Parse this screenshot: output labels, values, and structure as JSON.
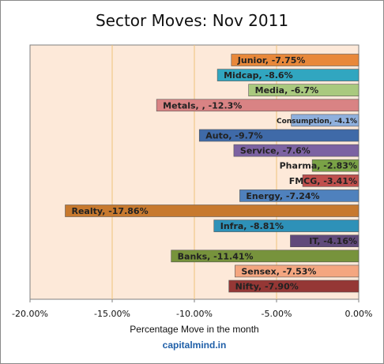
{
  "chart_data": {
    "type": "bar",
    "orientation": "horizontal",
    "title": "Sector Moves: Nov 2011",
    "xlabel": "Percentage Move in the month",
    "source": "capitalmind.in",
    "xlim": [
      -20,
      0
    ],
    "xticks": [
      "-20.00%",
      "-15.00%",
      "-10.00%",
      "-5.00%",
      "0.00%"
    ],
    "grid": "vertical",
    "bars": [
      {
        "label": "Junior, -7.75%",
        "value": -7.75,
        "color": "#e8883a"
      },
      {
        "label": "Midcap, -8.6%",
        "value": -8.6,
        "color": "#31a6c0"
      },
      {
        "label": "Media, -6.7%",
        "value": -6.7,
        "color": "#a9c97e"
      },
      {
        "label": "Metals, , -12.3%",
        "value": -12.3,
        "color": "#d98384"
      },
      {
        "label": "Consumption, -4.1%",
        "value": -4.1,
        "color": "#8fb0dd"
      },
      {
        "label": "Auto, -9.7%",
        "value": -9.7,
        "color": "#3f6aa8"
      },
      {
        "label": "Service, -7.6%",
        "value": -7.6,
        "color": "#7c62a2"
      },
      {
        "label": "Pharma, -2.83%",
        "value": -2.83,
        "color": "#7aa246"
      },
      {
        "label": "FMCG, -3.41%",
        "value": -3.41,
        "color": "#c0504d"
      },
      {
        "label": "Energy, -7.24%",
        "value": -7.24,
        "color": "#4f81bd"
      },
      {
        "label": "Realty, -17.86%",
        "value": -17.86,
        "color": "#c7792e"
      },
      {
        "label": "Infra, -8.81%",
        "value": -8.81,
        "color": "#2e91b8"
      },
      {
        "label": "IT, -4.16%",
        "value": -4.16,
        "color": "#604a7b"
      },
      {
        "label": "Banks, -11.41%",
        "value": -11.41,
        "color": "#77933c"
      },
      {
        "label": "Sensex, -7.53%",
        "value": -7.53,
        "color": "#f4a680"
      },
      {
        "label": "Nifty, -7.90%",
        "value": -7.9,
        "color": "#953735"
      }
    ]
  }
}
